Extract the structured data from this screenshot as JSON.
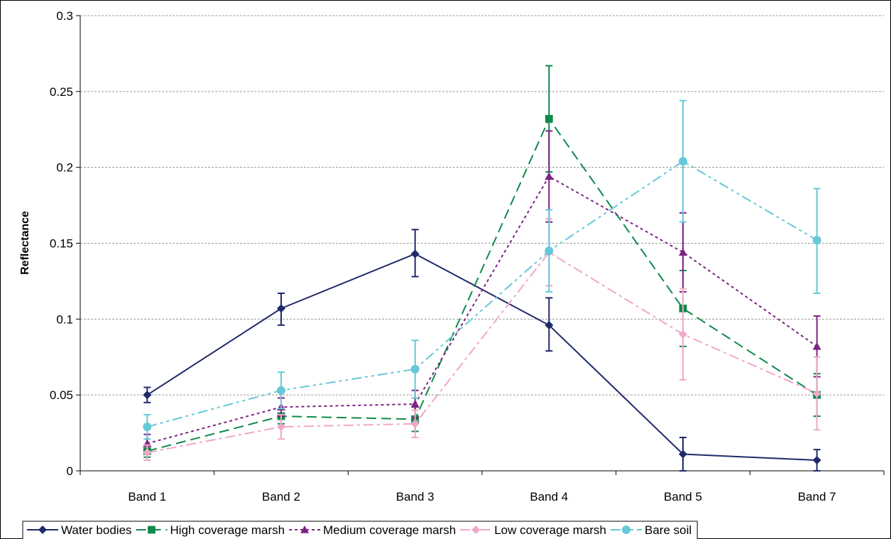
{
  "chart_data": {
    "type": "line",
    "title": "",
    "xlabel": "",
    "ylabel": "Reflectance",
    "ylim": [
      0,
      0.3
    ],
    "yticks": [
      "0",
      "0.05",
      "0.1",
      "0.15",
      "0.2",
      "0.25",
      "0.3"
    ],
    "ytick_values": [
      0,
      0.05,
      0.1,
      0.15,
      0.2,
      0.25,
      0.3
    ],
    "categories": [
      "Band 1",
      "Band 2",
      "Band 3",
      "Band 4",
      "Band 5",
      "Band 7"
    ],
    "grid": "horizontal dashed",
    "legend_position": "bottom",
    "series": [
      {
        "name": "Water bodies",
        "color": "#1f2a6b",
        "marker": "diamond",
        "dash": "solid",
        "values": [
          0.05,
          0.107,
          0.143,
          0.096,
          0.011,
          0.007
        ],
        "error": [
          [
            0.045,
            0.055
          ],
          [
            0.096,
            0.117
          ],
          [
            0.128,
            0.159
          ],
          [
            0.079,
            0.114
          ],
          [
            0.0,
            0.022
          ],
          [
            0.0,
            0.014
          ]
        ]
      },
      {
        "name": "High coverage marsh",
        "color": "#0f8a4a",
        "marker": "square",
        "dash": "dash",
        "values": [
          0.013,
          0.036,
          0.034,
          0.232,
          0.107,
          0.05
        ],
        "error": [
          [
            0.009,
            0.017
          ],
          [
            0.031,
            0.041
          ],
          [
            0.026,
            0.042
          ],
          [
            0.197,
            0.267
          ],
          [
            0.082,
            0.132
          ],
          [
            0.036,
            0.064
          ]
        ]
      },
      {
        "name": "Medium coverage marsh",
        "color": "#7d2384",
        "marker": "triangle",
        "dash": "dot",
        "values": [
          0.018,
          0.042,
          0.044,
          0.194,
          0.144,
          0.082
        ],
        "error": [
          [
            0.012,
            0.024
          ],
          [
            0.036,
            0.048
          ],
          [
            0.035,
            0.053
          ],
          [
            0.164,
            0.224
          ],
          [
            0.118,
            0.17
          ],
          [
            0.062,
            0.102
          ]
        ]
      },
      {
        "name": "Low coverage marsh",
        "color": "#f0a8c8",
        "marker": "diamond",
        "dash": "dashdot",
        "values": [
          0.012,
          0.029,
          0.031,
          0.144,
          0.09,
          0.051
        ],
        "error": [
          [
            0.007,
            0.017
          ],
          [
            0.021,
            0.037
          ],
          [
            0.022,
            0.04
          ],
          [
            0.122,
            0.166
          ],
          [
            0.06,
            0.12
          ],
          [
            0.027,
            0.075
          ]
        ]
      },
      {
        "name": "Bare soil",
        "color": "#66c8d8",
        "marker": "circle",
        "dash": "dashdotdot",
        "values": [
          0.029,
          0.053,
          0.067,
          0.145,
          0.204,
          0.152
        ],
        "error": [
          [
            0.021,
            0.037
          ],
          [
            0.041,
            0.065
          ],
          [
            0.048,
            0.086
          ],
          [
            0.118,
            0.172
          ],
          [
            0.164,
            0.244
          ],
          [
            0.117,
            0.186
          ]
        ]
      }
    ]
  }
}
